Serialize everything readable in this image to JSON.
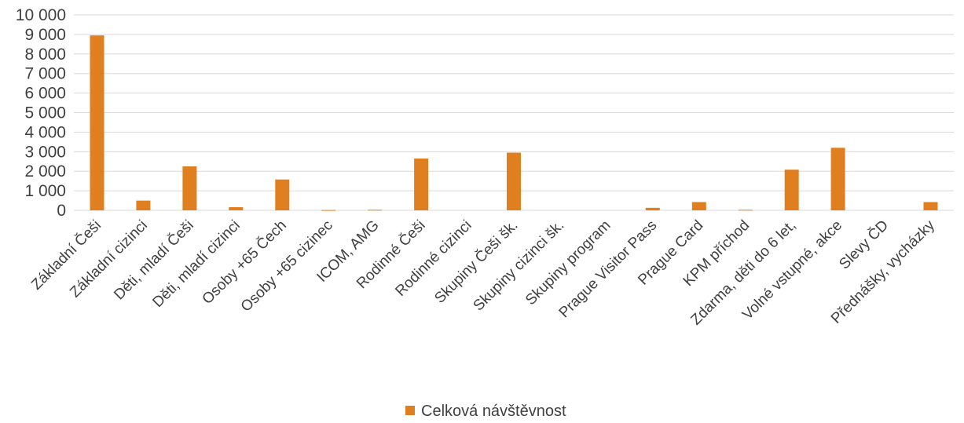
{
  "chart_data": {
    "type": "bar",
    "categories": [
      "Základní Češi",
      "Základní cizinci",
      "Děti, mladí Češi",
      "Děti, mladí cizinci",
      "Osoby +65 Čech",
      "Osoby +65 cizinec",
      "ICOM, AMG",
      "Rodinné Češi",
      "Rodinné cizinci",
      "Skupiny Češi šk.",
      "Skupiny cizinci šk.",
      "Skupiny program",
      "Prague Visitor Pass",
      "Prague Card",
      "KPM  příchod",
      "Zdarma, děti do 6 let,",
      "Volné vstupné, akce",
      "Slevy ČD",
      "Přednášky, vycházky"
    ],
    "series": [
      {
        "name": "Celková návštěvnost",
        "values": [
          8950,
          500,
          2250,
          160,
          1580,
          15,
          30,
          2650,
          0,
          2950,
          0,
          0,
          130,
          420,
          30,
          2080,
          3200,
          0,
          420
        ]
      }
    ],
    "ylim": [
      0,
      10000
    ],
    "yticks": [
      0,
      1000,
      2000,
      3000,
      4000,
      5000,
      6000,
      7000,
      8000,
      9000,
      10000
    ],
    "ytick_labels": [
      "0",
      "1 000",
      "2 000",
      "3 000",
      "4 000",
      "5 000",
      "6 000",
      "7 000",
      "8 000",
      "9 000",
      "10 000"
    ],
    "grid": true,
    "legend_position": "bottom",
    "colors": {
      "bar": "#E07F1F",
      "grid": "#D9D9D9",
      "text": "#404040"
    }
  }
}
